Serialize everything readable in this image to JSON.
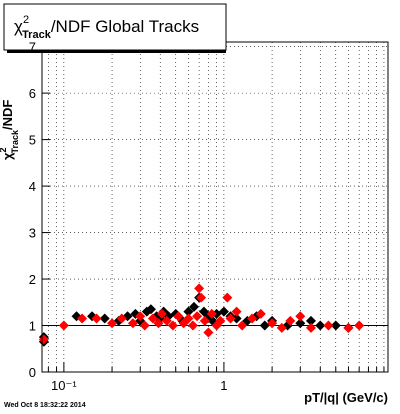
{
  "chart_data": {
    "type": "scatter",
    "title": {
      "symbol": "χ",
      "sup": "2",
      "sub": "Track",
      "rest": "/NDF  Global Tracks"
    },
    "y_label": {
      "symbol": "χ",
      "sup": "2",
      "sub": "Track",
      "rest": "/NDF"
    },
    "x_label": "pT/|q| (GeV/c)",
    "timestamp": "Wed Oct  8 18:32:22 2014",
    "log_x": true,
    "grid": true,
    "xlim": [
      0.073,
      10.6
    ],
    "ylim": [
      0,
      7.1
    ],
    "xticks": [
      {
        "value": 0.1,
        "label": "10⁻¹"
      },
      1
    ],
    "x_minor_ticks": [
      0.08,
      0.09,
      0.2,
      0.3,
      0.4,
      0.5,
      0.6,
      0.7,
      0.8,
      0.9,
      2,
      3,
      4,
      5,
      6,
      7,
      8,
      9,
      10
    ],
    "yticks": [
      0,
      1,
      2,
      3,
      4,
      5,
      6,
      7
    ],
    "reference_line": 1,
    "series": [
      {
        "color": "#000000",
        "x": [
          0.075,
          0.075,
          0.12,
          0.15,
          0.18,
          0.22,
          0.25,
          0.28,
          0.3,
          0.33,
          0.35,
          0.38,
          0.4,
          0.42,
          0.45,
          0.5,
          0.55,
          0.6,
          0.65,
          0.7,
          0.75,
          0.8,
          0.85,
          0.9,
          1.0,
          1.1,
          1.2,
          1.4,
          1.6,
          1.8,
          2.0,
          2.5,
          3.0,
          3.5,
          4.0,
          5.0,
          6.0
        ],
        "values": [
          0.65,
          0.75,
          1.2,
          1.2,
          1.15,
          1.1,
          1.2,
          1.25,
          1.1,
          1.3,
          1.35,
          1.2,
          1.15,
          1.3,
          1.2,
          1.25,
          1.1,
          1.3,
          1.4,
          1.6,
          1.3,
          1.2,
          1.1,
          1.25,
          1.3,
          1.2,
          1.15,
          1.1,
          1.2,
          1.0,
          1.1,
          1.0,
          1.05,
          1.1,
          1.0,
          1.0,
          0.95
        ]
      },
      {
        "color": "#ff0000",
        "x": [
          0.075,
          0.1,
          0.13,
          0.16,
          0.2,
          0.23,
          0.27,
          0.3,
          0.32,
          0.36,
          0.39,
          0.41,
          0.44,
          0.48,
          0.52,
          0.56,
          0.6,
          0.64,
          0.68,
          0.7,
          0.72,
          0.76,
          0.8,
          0.84,
          0.9,
          0.95,
          1.05,
          1.1,
          1.2,
          1.3,
          1.5,
          1.7,
          2.0,
          2.3,
          2.6,
          3.0,
          3.5,
          4.5,
          6.0,
          7.0
        ],
        "values": [
          0.7,
          1.0,
          1.15,
          1.15,
          1.05,
          1.15,
          1.05,
          1.2,
          1.0,
          1.15,
          1.05,
          1.25,
          1.1,
          1.0,
          1.2,
          1.05,
          1.15,
          1.0,
          1.2,
          1.8,
          1.6,
          1.1,
          0.85,
          1.25,
          1.0,
          1.1,
          1.6,
          1.15,
          1.3,
          1.0,
          1.15,
          1.25,
          1.05,
          0.95,
          1.1,
          1.2,
          0.95,
          1.0,
          0.95,
          1.0
        ]
      }
    ]
  }
}
